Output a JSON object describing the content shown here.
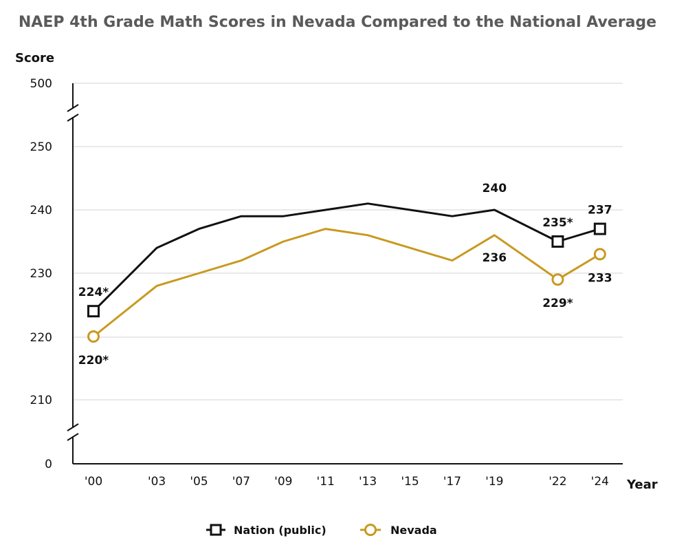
{
  "chart_data": {
    "type": "line",
    "title": "NAEP 4th Grade Math Scores in Nevada Compared to the National Average",
    "xlabel": "Year",
    "ylabel": "Score",
    "x": [
      2000,
      2003,
      2005,
      2007,
      2009,
      2011,
      2013,
      2015,
      2017,
      2019,
      2022,
      2024
    ],
    "x_tick_labels": [
      "'00",
      "'03",
      "'05",
      "'07",
      "'09",
      "'11",
      "'13",
      "'15",
      "'17",
      "'19",
      "'22",
      "'24"
    ],
    "y_tick_labels": [
      "500",
      "250",
      "240",
      "230",
      "220",
      "210",
      "0"
    ],
    "ylim": [
      210,
      250
    ],
    "y_axis_breaks": [
      "above 250 (to 500)",
      "below 210 (to 0)"
    ],
    "grid": true,
    "legend_position": "bottom",
    "series": [
      {
        "name": "Nation (public)",
        "color": "#111111",
        "marker": "square",
        "values": [
          224,
          234,
          237,
          239,
          239,
          240,
          241,
          240,
          239,
          240,
          235,
          237
        ]
      },
      {
        "name": "Nevada",
        "color": "#C9991F",
        "marker": "circle",
        "values": [
          220,
          228,
          230,
          232,
          235,
          237,
          236,
          234,
          232,
          236,
          229,
          233
        ]
      }
    ],
    "data_labels": [
      {
        "series": "Nation (public)",
        "x": 2000,
        "text": "224*"
      },
      {
        "series": "Nation (public)",
        "x": 2019,
        "text": "240"
      },
      {
        "series": "Nation (public)",
        "x": 2022,
        "text": "235*"
      },
      {
        "series": "Nation (public)",
        "x": 2024,
        "text": "237"
      },
      {
        "series": "Nevada",
        "x": 2000,
        "text": "220*"
      },
      {
        "series": "Nevada",
        "x": 2019,
        "text": "236"
      },
      {
        "series": "Nevada",
        "x": 2022,
        "text": "229*"
      },
      {
        "series": "Nevada",
        "x": 2024,
        "text": "233"
      }
    ],
    "marker_years": [
      2000,
      2022,
      2024
    ]
  }
}
